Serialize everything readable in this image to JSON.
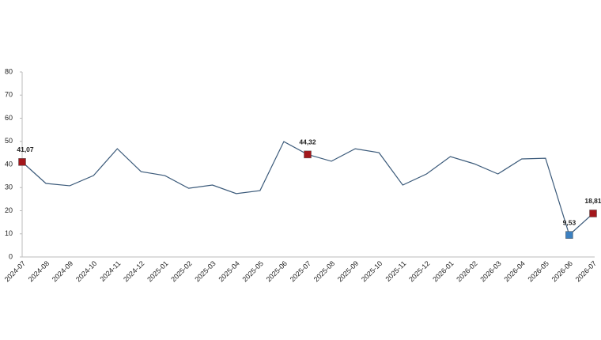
{
  "chart_data": {
    "type": "line",
    "categories": [
      "2024-07",
      "2024-08",
      "2024-09",
      "2024-10",
      "2024-11",
      "2024-12",
      "2025-01",
      "2025-02",
      "2025-03",
      "2025-04",
      "2025-05",
      "2025-06",
      "2025-07",
      "2025-08",
      "2025-09",
      "2025-10",
      "2025-11",
      "2025-12",
      "2026-01",
      "2026-02",
      "2026-03",
      "2026-04",
      "2026-05",
      "2026-06",
      "2026-07"
    ],
    "series": [
      {
        "color": "#3b5a7a",
        "values": [
          41.07,
          31.8,
          30.8,
          35.2,
          46.8,
          36.9,
          35.2,
          29.7,
          31.1,
          27.4,
          28.7,
          49.9,
          44.32,
          41.4,
          46.8,
          45.1,
          31.1,
          35.9,
          43.4,
          40.3,
          35.9,
          42.4,
          42.7,
          9.53,
          18.81
        ],
        "value_labels": [
          "41,07",
          null,
          null,
          null,
          null,
          null,
          null,
          null,
          null,
          null,
          null,
          null,
          "44,32",
          null,
          null,
          null,
          null,
          null,
          null,
          null,
          null,
          null,
          null,
          "9,53",
          "18,81"
        ],
        "marker_colors": [
          "#a3171c",
          null,
          null,
          null,
          null,
          null,
          null,
          null,
          null,
          null,
          null,
          null,
          "#a3171c",
          null,
          null,
          null,
          null,
          null,
          null,
          null,
          null,
          null,
          null,
          "#3c80c0",
          "#a3171c"
        ]
      }
    ],
    "ylim": [
      0,
      80
    ],
    "yticks": [
      0,
      10,
      20,
      30,
      40,
      50,
      60,
      70,
      80
    ],
    "grid": false
  }
}
